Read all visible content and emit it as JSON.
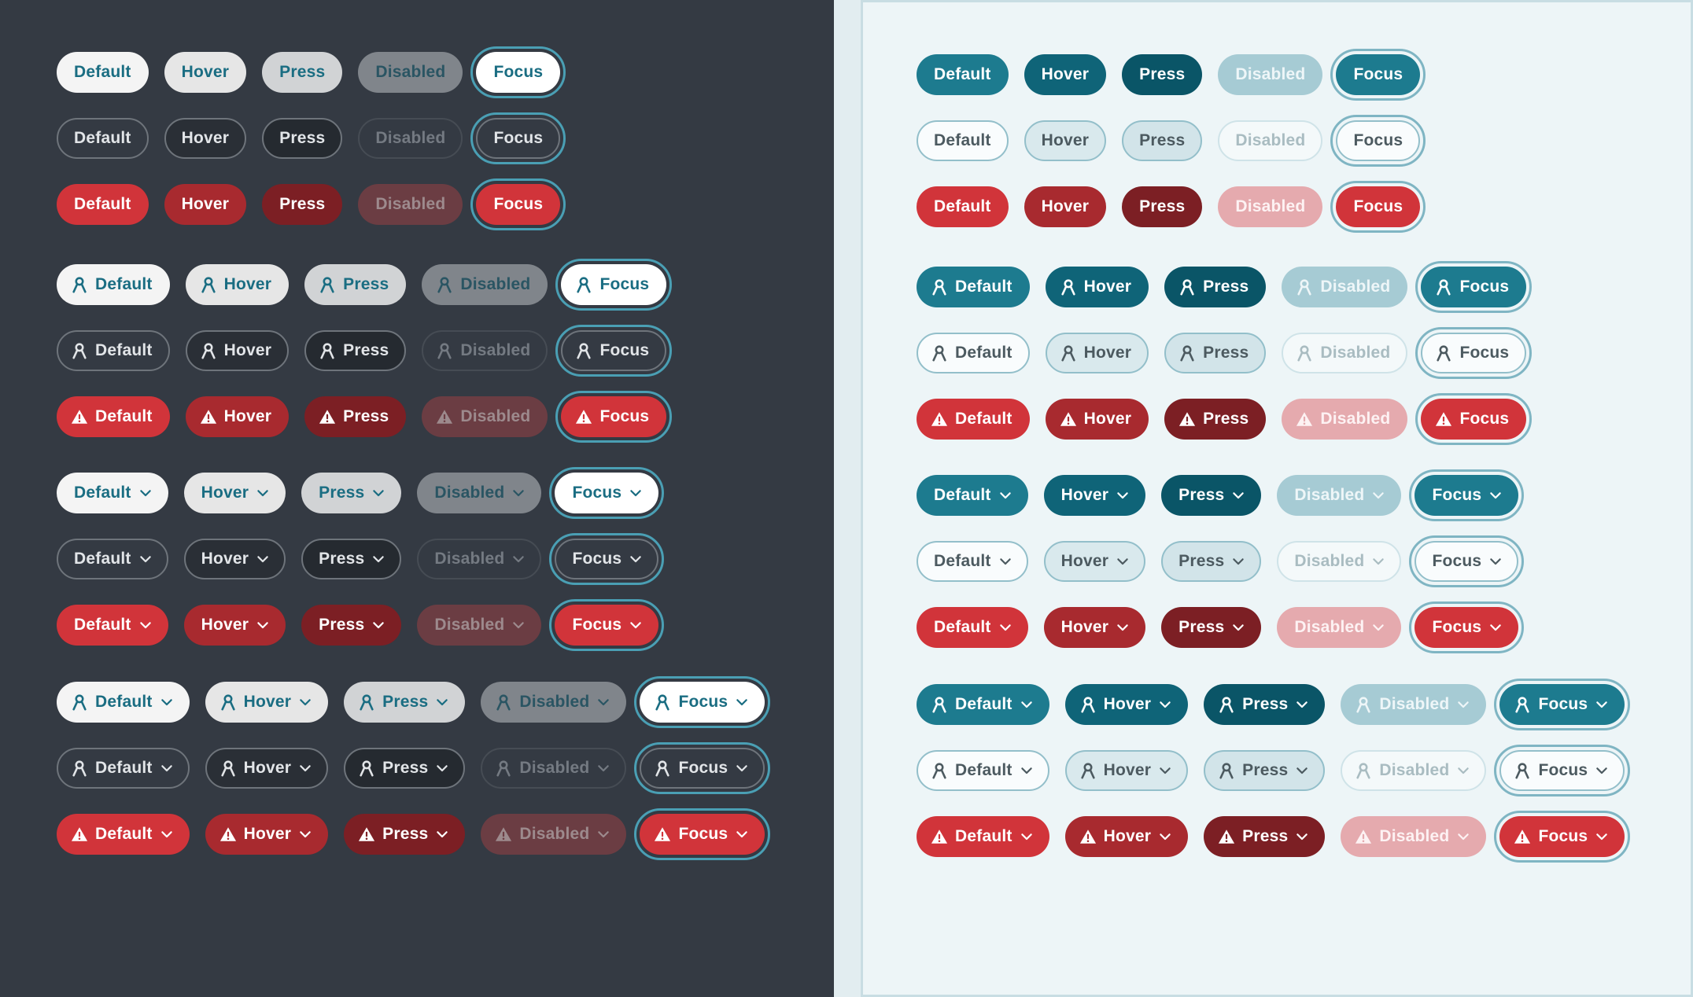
{
  "states": [
    "Default",
    "Hover",
    "Press",
    "Disabled",
    "Focus"
  ],
  "colors": {
    "dark_background": "#343a43",
    "light_background": "#edf5f7",
    "teal_accent": "#1d7b8f",
    "danger_red": "#d1343a",
    "focus_ring": "#4a9fb4"
  },
  "icons": {
    "person": "person-icon",
    "warning": "warning-icon",
    "chevron": "chevron-down-icon"
  },
  "panels": [
    {
      "theme": "dark",
      "groups": [
        {
          "type": "text",
          "rows": [
            "white",
            "out",
            "red"
          ]
        },
        {
          "type": "icon",
          "rows": [
            "white",
            "out",
            "red"
          ]
        },
        {
          "type": "chevron",
          "rows": [
            "white",
            "out",
            "red"
          ]
        },
        {
          "type": "icon-chevron",
          "rows": [
            "white",
            "out",
            "red"
          ]
        }
      ]
    },
    {
      "theme": "light",
      "groups": [
        {
          "type": "text",
          "rows": [
            "teal",
            "out",
            "red"
          ]
        },
        {
          "type": "icon",
          "rows": [
            "teal",
            "out",
            "red"
          ]
        },
        {
          "type": "chevron",
          "rows": [
            "teal",
            "out",
            "red"
          ]
        },
        {
          "type": "icon-chevron",
          "rows": [
            "teal",
            "out",
            "red"
          ]
        }
      ]
    }
  ]
}
